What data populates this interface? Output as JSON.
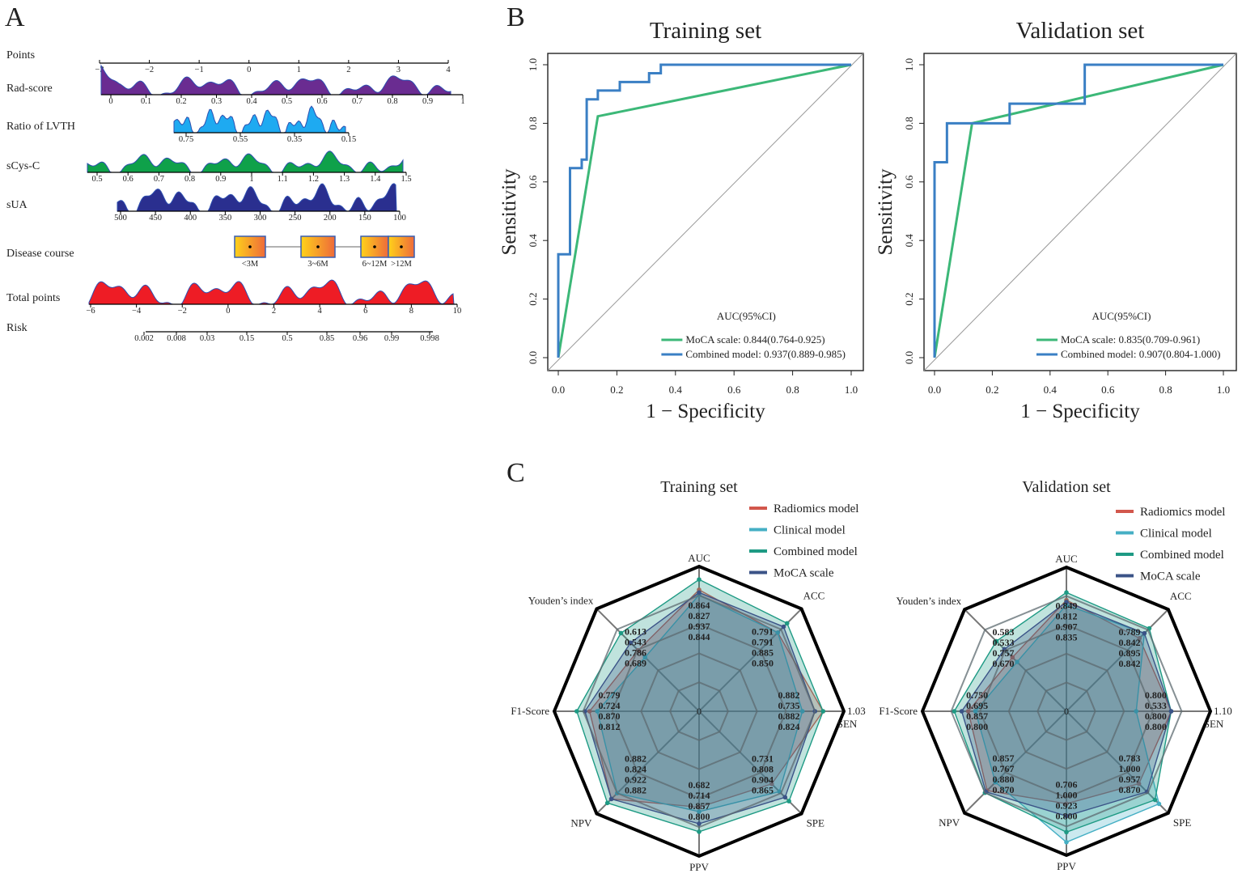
{
  "panels": {
    "a": "A",
    "b": "B",
    "c": "C"
  },
  "nomogram": {
    "rows": [
      {
        "label": "Points",
        "ticks": [
          "−3",
          "−2",
          "−1",
          "0",
          "1",
          "2",
          "3",
          "4"
        ],
        "color": "#000000"
      },
      {
        "label": "Rad-score",
        "ticks": [
          "0",
          "0.1",
          "0.2",
          "0.3",
          "0.4",
          "0.5",
          "0.6",
          "0.7",
          "0.8",
          "0.9",
          "1"
        ],
        "color": "#6a2c91"
      },
      {
        "label": "Ratio of LVTH",
        "ticks": [
          "0.75",
          "0.55",
          "0.35",
          "0.15"
        ],
        "color": "#1eaaf1"
      },
      {
        "label": "sCys-C",
        "ticks": [
          "0.5",
          "0.6",
          "0.7",
          "0.8",
          "0.9",
          "1",
          "1.1",
          "1.2",
          "1.3",
          "1.4",
          "1.5"
        ],
        "color": "#0fa14a"
      },
      {
        "label": "sUA",
        "ticks": [
          "500",
          "450",
          "400",
          "350",
          "300",
          "250",
          "200",
          "150",
          "100"
        ],
        "color": "#2a2f8f"
      },
      {
        "label": "Disease course",
        "ticks": [
          "<3M",
          "3~6M",
          "6~12M",
          ">12M"
        ],
        "color": "#f5a623"
      },
      {
        "label": "Total points",
        "ticks": [
          "−6",
          "−4",
          "−2",
          "0",
          "2",
          "4",
          "6",
          "8",
          "10"
        ],
        "color": "#ee1c25"
      },
      {
        "label": "Risk",
        "ticks": [
          "0.002",
          "0.008",
          "0.03",
          "0.15",
          "0.5",
          "0.85",
          "0.96",
          "0.99",
          "0.998"
        ],
        "color": "#000000"
      }
    ]
  },
  "chart_data": [
    {
      "type": "line",
      "title": "Training set",
      "xlabel": "1 − Specificity",
      "ylabel": "Sensitivity",
      "xlim": [
        0,
        1
      ],
      "ylim": [
        0,
        1
      ],
      "xticks": [
        "0.0",
        "0.2",
        "0.4",
        "0.6",
        "0.8",
        "1.0"
      ],
      "yticks": [
        "0.0",
        "0.2",
        "0.4",
        "0.6",
        "0.8",
        "1.0"
      ],
      "legend_title": "AUC(95%CI)",
      "legend_position": "bottom-right",
      "diagonal": true,
      "series": [
        {
          "name": "MoCA scale: 0.844(0.764-0.925)",
          "color": "#3cb878",
          "points": [
            [
              0,
              0
            ],
            [
              0.135,
              0.824
            ],
            [
              1,
              1
            ]
          ]
        },
        {
          "name": "Combined model: 0.937(0.889-0.985)",
          "color": "#3a7fc4",
          "points": [
            [
              0,
              0
            ],
            [
              0,
              0.353
            ],
            [
              0.04,
              0.353
            ],
            [
              0.04,
              0.647
            ],
            [
              0.08,
              0.647
            ],
            [
              0.08,
              0.676
            ],
            [
              0.097,
              0.676
            ],
            [
              0.097,
              0.882
            ],
            [
              0.135,
              0.882
            ],
            [
              0.135,
              0.912
            ],
            [
              0.21,
              0.912
            ],
            [
              0.21,
              0.941
            ],
            [
              0.31,
              0.941
            ],
            [
              0.31,
              0.971
            ],
            [
              0.35,
              0.971
            ],
            [
              0.35,
              1
            ],
            [
              1,
              1
            ]
          ]
        }
      ]
    },
    {
      "type": "line",
      "title": "Validation set",
      "xlabel": "1 − Specificity",
      "ylabel": "Sensitivity",
      "xlim": [
        0,
        1
      ],
      "ylim": [
        0,
        1
      ],
      "xticks": [
        "0.0",
        "0.2",
        "0.4",
        "0.6",
        "0.8",
        "1.0"
      ],
      "yticks": [
        "0.0",
        "0.2",
        "0.4",
        "0.6",
        "0.8",
        "1.0"
      ],
      "legend_title": "AUC(95%CI)",
      "legend_position": "bottom-right",
      "diagonal": true,
      "series": [
        {
          "name": "MoCA scale: 0.835(0.709-0.961)",
          "color": "#3cb878",
          "points": [
            [
              0,
              0
            ],
            [
              0.13,
              0.8
            ],
            [
              1,
              1
            ]
          ]
        },
        {
          "name": "Combined model: 0.907(0.804-1.000)",
          "color": "#3a7fc4",
          "points": [
            [
              0,
              0
            ],
            [
              0,
              0.667
            ],
            [
              0.043,
              0.667
            ],
            [
              0.043,
              0.8
            ],
            [
              0.26,
              0.8
            ],
            [
              0.26,
              0.867
            ],
            [
              0.52,
              0.867
            ],
            [
              0.52,
              1
            ],
            [
              1,
              1
            ]
          ]
        }
      ]
    },
    {
      "type": "radar",
      "title": "Training set",
      "max": 1.03,
      "max_label": "1.03",
      "center_label": "0",
      "axes": [
        "AUC",
        "ACC",
        "SEN",
        "SPE",
        "PPV",
        "NPV",
        "F1-Score",
        "Youden’s index"
      ],
      "legend_position": "top-right",
      "series": [
        {
          "name": "Radiomics model",
          "color": "#d2574c",
          "values": [
            0.864,
            0.791,
            0.882,
            0.731,
            0.682,
            0.882,
            0.779,
            0.613
          ],
          "labels": [
            "0.864",
            "0.791",
            "0.882",
            "0.731",
            "0.682",
            "0.882",
            "0.779",
            "0.613"
          ]
        },
        {
          "name": "Clinical model",
          "color": "#45afc4",
          "values": [
            0.827,
            0.791,
            0.735,
            0.808,
            0.714,
            0.824,
            0.724,
            0.543
          ],
          "labels": [
            "0.827",
            "0.791",
            "0.735",
            "0.808",
            "0.714",
            "0.824",
            "0.724",
            "0.543"
          ]
        },
        {
          "name": "Combined model",
          "color": "#1e9a84",
          "values": [
            0.937,
            0.885,
            0.882,
            0.904,
            0.857,
            0.922,
            0.87,
            0.786
          ],
          "labels": [
            "0.937",
            "0.885",
            "0.882",
            "0.904",
            "0.857",
            "0.922",
            "0.870",
            "0.786"
          ]
        },
        {
          "name": "MoCA scale",
          "color": "#3b5387",
          "values": [
            0.844,
            0.85,
            0.824,
            0.865,
            0.8,
            0.882,
            0.812,
            0.689
          ],
          "labels": [
            "0.844",
            "0.850",
            "0.824",
            "0.865",
            "0.800",
            "0.882",
            "0.812",
            "0.689"
          ]
        }
      ]
    },
    {
      "type": "radar",
      "title": "Validation set",
      "max": 1.1,
      "max_label": "1.10",
      "center_label": "0",
      "axes": [
        "AUC",
        "ACC",
        "SEN",
        "SPE",
        "PPV",
        "NPV",
        "F1-Score",
        "Youden’s index"
      ],
      "legend_position": "top-right",
      "series": [
        {
          "name": "Radiomics model",
          "color": "#d2574c",
          "values": [
            0.849,
            0.789,
            0.8,
            0.783,
            0.706,
            0.857,
            0.75,
            0.583
          ],
          "labels": [
            "0.849",
            "0.789",
            "0.800",
            "0.783",
            "0.706",
            "0.857",
            "0.750",
            "0.583"
          ]
        },
        {
          "name": "Clinical model",
          "color": "#45afc4",
          "values": [
            0.812,
            0.842,
            0.533,
            1.0,
            1.0,
            0.767,
            0.695,
            0.533
          ],
          "labels": [
            "0.812",
            "0.842",
            "0.533",
            "1.000",
            "1.000",
            "0.767",
            "0.695",
            "0.533"
          ]
        },
        {
          "name": "Combined model",
          "color": "#1e9a84",
          "values": [
            0.907,
            0.895,
            0.8,
            0.957,
            0.923,
            0.88,
            0.857,
            0.757
          ],
          "labels": [
            "0.907",
            "0.895",
            "0.800",
            "0.957",
            "0.923",
            "0.880",
            "0.857",
            "0.757"
          ]
        },
        {
          "name": "MoCA scale",
          "color": "#3b5387",
          "values": [
            0.835,
            0.842,
            0.8,
            0.87,
            0.8,
            0.87,
            0.8,
            0.67
          ],
          "labels": [
            "0.835",
            "0.842",
            "0.800",
            "0.870",
            "0.800",
            "0.870",
            "0.800",
            "0.670"
          ]
        }
      ]
    }
  ]
}
